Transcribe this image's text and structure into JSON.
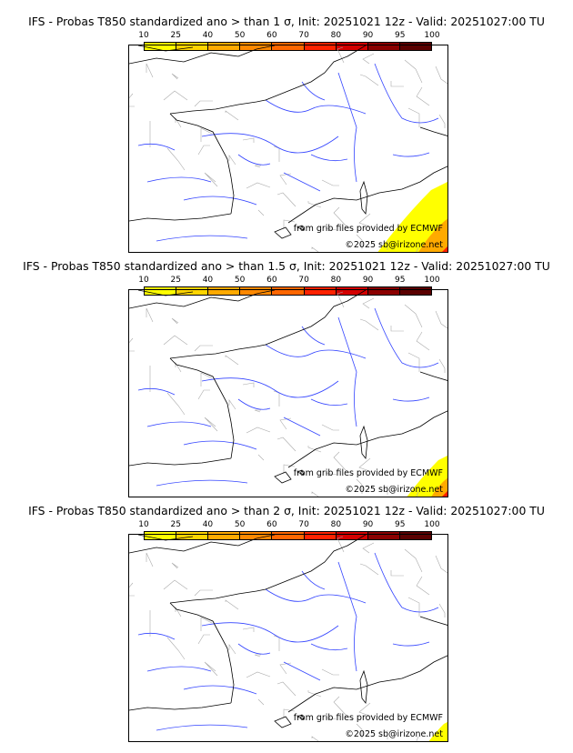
{
  "panels": [
    {
      "title": "IFS - Probas T850  standardized ano > than 1 σ, Init: 20251021 12z - Valid: 20251027:00 TU",
      "sigma": "1",
      "anomaly_extent": 1.0
    },
    {
      "title": "IFS - Probas T850  standardized ano > than 1.5 σ, Init: 20251021 12z - Valid: 20251027:00 TU",
      "sigma": "1.5",
      "anomaly_extent": 0.6
    },
    {
      "title": "IFS - Probas T850  standardized ano > than 2 σ, Init: 20251021 12z - Valid: 20251027:00 TU",
      "sigma": "2",
      "anomaly_extent": 0.3
    }
  ],
  "colorbar": {
    "ticks": [
      "10",
      "25",
      "40",
      "50",
      "60",
      "70",
      "80",
      "90",
      "95",
      "100"
    ],
    "colors": [
      "#ffff00",
      "#ffd500",
      "#ffaa00",
      "#ff8800",
      "#ff6600",
      "#ff2200",
      "#d40000",
      "#8b0000",
      "#5a0000"
    ]
  },
  "credits": {
    "source": "from grib files provided by ECMWF",
    "copyright": "©2025 sb@irizone.net"
  }
}
